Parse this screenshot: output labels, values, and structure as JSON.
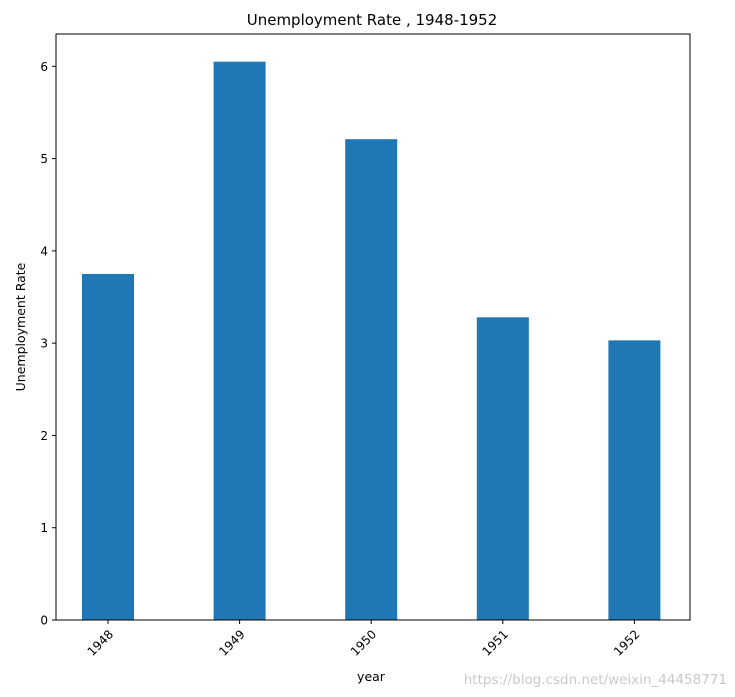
{
  "chart_data": {
    "type": "bar",
    "title": "Unemployment Rate , 1948-1952",
    "xlabel": "year",
    "ylabel": "Unemployment Rate",
    "categories": [
      "1948",
      "1949",
      "1950",
      "1951",
      "1952"
    ],
    "values": [
      3.75,
      6.05,
      5.21,
      3.28,
      3.03
    ],
    "ylim": [
      0,
      6.35
    ],
    "yticks": [
      "0",
      "1",
      "2",
      "3",
      "4",
      "5",
      "6"
    ],
    "bar_color": "#1f77b4",
    "grid": false,
    "legend": "none"
  },
  "watermark": "https://blog.csdn.net/weixin_44458771"
}
